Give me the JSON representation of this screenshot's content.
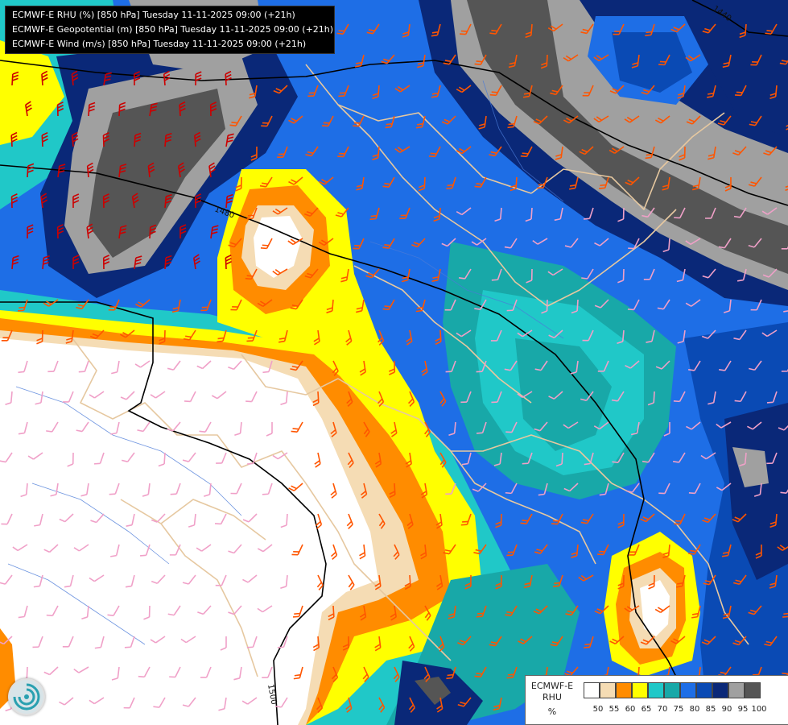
{
  "header": {
    "line1": "ECMWF-E RHU (%) [850 hPa] Tuesday 11-11-2025 09:00 (+21h)",
    "line2": "ECMWF-E Geopotential (m) [850 hPa] Tuesday 11-11-2025 09:00 (+21h)",
    "line3": "ECMWF-E Wind (m/s) [850 hPa] Tuesday 11-11-2025 09:00 (+21h)"
  },
  "legend": {
    "title1": "ECMWF-E",
    "title2": "RHU",
    "unit": "%",
    "classes": [
      {
        "label": "50",
        "color": "#ffffff"
      },
      {
        "label": "55",
        "color": "#f5dcb4"
      },
      {
        "label": "60",
        "color": "#ff8c00"
      },
      {
        "label": "65",
        "color": "#ffff00"
      },
      {
        "label": "70",
        "color": "#20c8c8"
      },
      {
        "label": "75",
        "color": "#18a8a8"
      },
      {
        "label": "80",
        "color": "#1e6ee6"
      },
      {
        "label": "85",
        "color": "#0a4ab4"
      },
      {
        "label": "90",
        "color": "#0a2878"
      },
      {
        "label": "95",
        "color": "#a0a0a0"
      },
      {
        "label": "100",
        "color": "#555555"
      }
    ]
  },
  "isolines": {
    "label_1440": "1440",
    "label_1480": "1480",
    "label_1500": "1500"
  },
  "palette": {
    "gray_dark": "#555555",
    "gray": "#a0a0a0",
    "navy": "#0a2878",
    "blue_dark": "#0a4ab4",
    "blue": "#1e6ee6",
    "teal": "#18a8a8",
    "cyan": "#20c8c8",
    "yellow": "#ffff00",
    "orange": "#ff8c00",
    "tan": "#f5dcb4",
    "white": "#ffffff",
    "barb_red": "#cc0000",
    "barb_orange": "#ff5500",
    "barb_pink": "#f0a0c8",
    "border_beige": "#e6c8a0"
  },
  "logo_icon": "ecmwf-swirl-logo-icon"
}
